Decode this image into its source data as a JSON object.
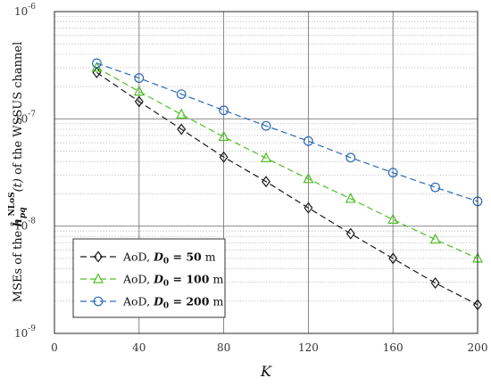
{
  "chart_data": {
    "type": "line",
    "title": "",
    "xlabel": "K",
    "ylabel": "MSEs of the ĥ_pq^NLoS(t) of the WSSUS channel",
    "ylabel_parts": {
      "before": "MSEs of the ",
      "hat_symbol": "ĥ",
      "subscript": "pq",
      "superscript": "NLoS",
      "arg": "(t)",
      "after": " of the WSSUS channel"
    },
    "x_ticks": [
      "0",
      "40",
      "80",
      "120",
      "160",
      "200"
    ],
    "y_ticks": [
      {
        "mantissa": "10",
        "exponent": "-9"
      },
      {
        "mantissa": "10",
        "exponent": "-8"
      },
      {
        "mantissa": "10",
        "exponent": "-7"
      },
      {
        "mantissa": "10",
        "exponent": "-6"
      }
    ],
    "xlim": [
      0,
      200
    ],
    "ylim": [
      1e-09,
      1e-06
    ],
    "yscale": "log",
    "grid": true,
    "legend_position": "bottom-left",
    "x": [
      20,
      40,
      60,
      80,
      100,
      120,
      140,
      160,
      180,
      200
    ],
    "series": [
      {
        "name": "AoD, D_0 = 50 m",
        "label_parts": {
          "prefix": "AoD, ",
          "var": "D",
          "sub": "0",
          "rest": " = 50",
          "unit": " m"
        },
        "marker": "diamond",
        "color": "#1a1a1a",
        "values": [
          2.7e-07,
          1.45e-07,
          8e-08,
          4.4e-08,
          2.6e-08,
          1.48e-08,
          8.5e-09,
          5e-09,
          2.95e-09,
          1.85e-09
        ]
      },
      {
        "name": "AoD, D_0 = 100 m",
        "label_parts": {
          "prefix": "AoD, ",
          "var": "D",
          "sub": "0",
          "rest": " = 100",
          "unit": " m"
        },
        "marker": "triangle",
        "color": "#4fbf26",
        "values": [
          3e-07,
          1.8e-07,
          1.1e-07,
          6.8e-08,
          4.3e-08,
          2.75e-08,
          1.8e-08,
          1.15e-08,
          7.5e-09,
          5e-09
        ]
      },
      {
        "name": "AoD, D_0 = 200 m",
        "label_parts": {
          "prefix": "AoD, ",
          "var": "D",
          "sub": "0",
          "rest": " = 200",
          "unit": " m"
        },
        "marker": "circle",
        "color": "#2a6ab8",
        "values": [
          3.3e-07,
          2.4e-07,
          1.7e-07,
          1.2e-07,
          8.6e-08,
          6.2e-08,
          4.35e-08,
          3.15e-08,
          2.3e-08,
          1.7e-08
        ]
      }
    ]
  }
}
